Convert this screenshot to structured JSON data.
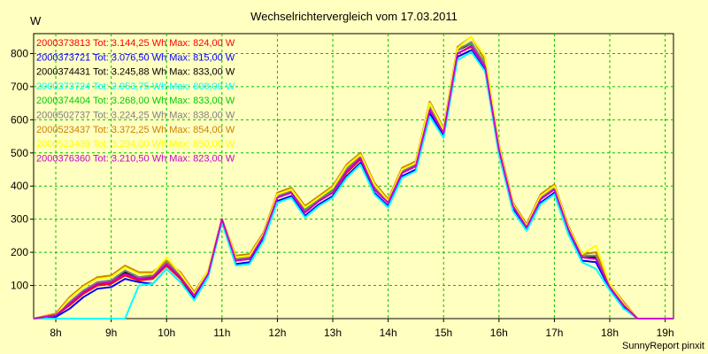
{
  "chart_data": {
    "type": "line",
    "title": "Wechselrichtervergleich vom 17.03.2011",
    "ylabel": "W",
    "xlabel": "",
    "footer": "SunnyReport pinxit",
    "grid": true,
    "legend_position": "top-left",
    "ylim": [
      0,
      860
    ],
    "yticks": [
      100,
      200,
      300,
      400,
      500,
      600,
      700,
      800
    ],
    "xlim": [
      7.6,
      19.15
    ],
    "xticks": [
      8,
      9,
      10,
      11,
      12,
      13,
      14,
      15,
      16,
      17,
      18,
      19
    ],
    "xtick_labels": [
      "8h",
      "9h",
      "10h",
      "11h",
      "12h",
      "13h",
      "14h",
      "15h",
      "16h",
      "17h",
      "18h",
      "19h"
    ],
    "x": [
      7.6,
      8.0,
      8.25,
      8.5,
      8.75,
      9.0,
      9.25,
      9.5,
      9.75,
      10.0,
      10.25,
      10.5,
      10.75,
      11.0,
      11.25,
      11.5,
      11.75,
      12.0,
      12.25,
      12.5,
      12.75,
      13.0,
      13.25,
      13.5,
      13.75,
      14.0,
      14.25,
      14.5,
      14.75,
      15.0,
      15.25,
      15.5,
      15.75,
      16.0,
      16.25,
      16.5,
      16.75,
      17.0,
      17.25,
      17.5,
      17.75,
      18.0,
      18.25,
      18.5,
      18.75,
      19.0,
      19.15
    ],
    "series": [
      {
        "name": "2000373813",
        "label": "2000373813 Tot: 3.144,25 Wh Max: 824,00 W",
        "color": "#ff0000",
        "values": [
          0,
          10,
          40,
          75,
          100,
          105,
          130,
          115,
          120,
          160,
          120,
          65,
          135,
          300,
          175,
          180,
          250,
          365,
          380,
          320,
          355,
          380,
          440,
          480,
          390,
          350,
          440,
          460,
          630,
          560,
          800,
          820,
          760,
          510,
          340,
          275,
          360,
          390,
          270,
          185,
          180,
          95,
          40,
          0,
          0,
          0,
          0
        ]
      },
      {
        "name": "2000373721",
        "label": "2000373721 Tot: 3.076,50 Wh Max: 815,00 W",
        "color": "#0000ff",
        "values": [
          0,
          5,
          30,
          65,
          90,
          95,
          120,
          110,
          105,
          150,
          110,
          60,
          130,
          295,
          165,
          170,
          240,
          355,
          370,
          310,
          345,
          370,
          430,
          470,
          380,
          340,
          430,
          450,
          620,
          550,
          790,
          810,
          750,
          500,
          330,
          270,
          350,
          380,
          260,
          175,
          170,
          90,
          35,
          0,
          0,
          0,
          0
        ]
      },
      {
        "name": "2000374431",
        "label": "2000374431 Tot: 3.245,88 Wh Max: 833,00 W",
        "color": "#000000",
        "values": [
          0,
          10,
          45,
          80,
          105,
          110,
          140,
          120,
          125,
          165,
          125,
          70,
          140,
          300,
          180,
          185,
          255,
          370,
          385,
          325,
          360,
          385,
          450,
          490,
          395,
          355,
          445,
          465,
          640,
          565,
          810,
          830,
          765,
          515,
          345,
          280,
          365,
          395,
          275,
          190,
          185,
          100,
          45,
          0,
          0,
          0,
          0
        ]
      },
      {
        "name": "2000373724",
        "label": "2000373724 Tot: 2.953,75 Wh Max: 808,00 W",
        "color": "#00ffff",
        "values": [
          0,
          0,
          0,
          0,
          0,
          0,
          0,
          100,
          105,
          150,
          110,
          55,
          125,
          290,
          160,
          165,
          235,
          350,
          365,
          305,
          340,
          365,
          425,
          465,
          375,
          335,
          425,
          445,
          610,
          545,
          780,
          805,
          745,
          495,
          325,
          265,
          345,
          375,
          255,
          170,
          150,
          85,
          30,
          0,
          0,
          0,
          0
        ]
      },
      {
        "name": "2000374404",
        "label": "2000374404 Tot: 3.268,00 Wh Max: 833,00 W",
        "color": "#00cc00",
        "values": [
          0,
          10,
          50,
          85,
          110,
          115,
          145,
          125,
          130,
          170,
          130,
          70,
          140,
          300,
          180,
          185,
          255,
          375,
          390,
          330,
          365,
          390,
          455,
          500,
          400,
          355,
          450,
          470,
          645,
          570,
          815,
          830,
          770,
          520,
          345,
          280,
          370,
          400,
          275,
          190,
          190,
          100,
          45,
          0,
          0,
          0,
          0
        ]
      },
      {
        "name": "2000502737",
        "label": "2000502737 Tot: 3.224,25 Wh Max: 838,00 W",
        "color": "#808080",
        "values": [
          0,
          10,
          50,
          85,
          110,
          115,
          145,
          125,
          130,
          170,
          130,
          70,
          140,
          300,
          180,
          185,
          255,
          370,
          385,
          325,
          360,
          385,
          450,
          490,
          395,
          355,
          445,
          465,
          640,
          565,
          810,
          835,
          765,
          515,
          345,
          280,
          365,
          395,
          270,
          190,
          190,
          100,
          45,
          0,
          0,
          0,
          0
        ]
      },
      {
        "name": "2000523437",
        "label": "2000523437 Tot: 3.372,25 Wh Max: 854,00 W",
        "color": "#cc8000",
        "values": [
          0,
          15,
          65,
          100,
          125,
          130,
          160,
          140,
          140,
          175,
          140,
          80,
          145,
          300,
          190,
          195,
          260,
          380,
          395,
          340,
          370,
          400,
          465,
          500,
          410,
          360,
          455,
          475,
          655,
          575,
          820,
          850,
          780,
          525,
          350,
          285,
          375,
          405,
          280,
          195,
          200,
          105,
          50,
          0,
          0,
          0,
          0
        ]
      },
      {
        "name": "2000523439",
        "label": "2000523439 Tot: 3.294,00 Wh Max: 850,00 W",
        "color": "#ffff00",
        "values": [
          0,
          10,
          60,
          95,
          120,
          125,
          155,
          135,
          135,
          185,
          135,
          75,
          145,
          300,
          185,
          190,
          255,
          375,
          390,
          335,
          365,
          395,
          460,
          495,
          405,
          355,
          450,
          470,
          650,
          570,
          815,
          850,
          790,
          520,
          345,
          280,
          370,
          400,
          275,
          195,
          220,
          105,
          45,
          0,
          0,
          0,
          0
        ]
      },
      {
        "name": "2000376360",
        "label": "2000376360 Tot: 3.210,50 Wh Max: 823,00 W",
        "color": "#cc00cc",
        "values": [
          0,
          10,
          45,
          80,
          105,
          110,
          135,
          120,
          125,
          165,
          125,
          70,
          135,
          300,
          175,
          180,
          250,
          365,
          380,
          320,
          355,
          380,
          445,
          485,
          390,
          350,
          440,
          460,
          630,
          560,
          800,
          823,
          760,
          510,
          340,
          275,
          360,
          390,
          270,
          185,
          180,
          95,
          40,
          0,
          0,
          0,
          0
        ]
      }
    ]
  }
}
